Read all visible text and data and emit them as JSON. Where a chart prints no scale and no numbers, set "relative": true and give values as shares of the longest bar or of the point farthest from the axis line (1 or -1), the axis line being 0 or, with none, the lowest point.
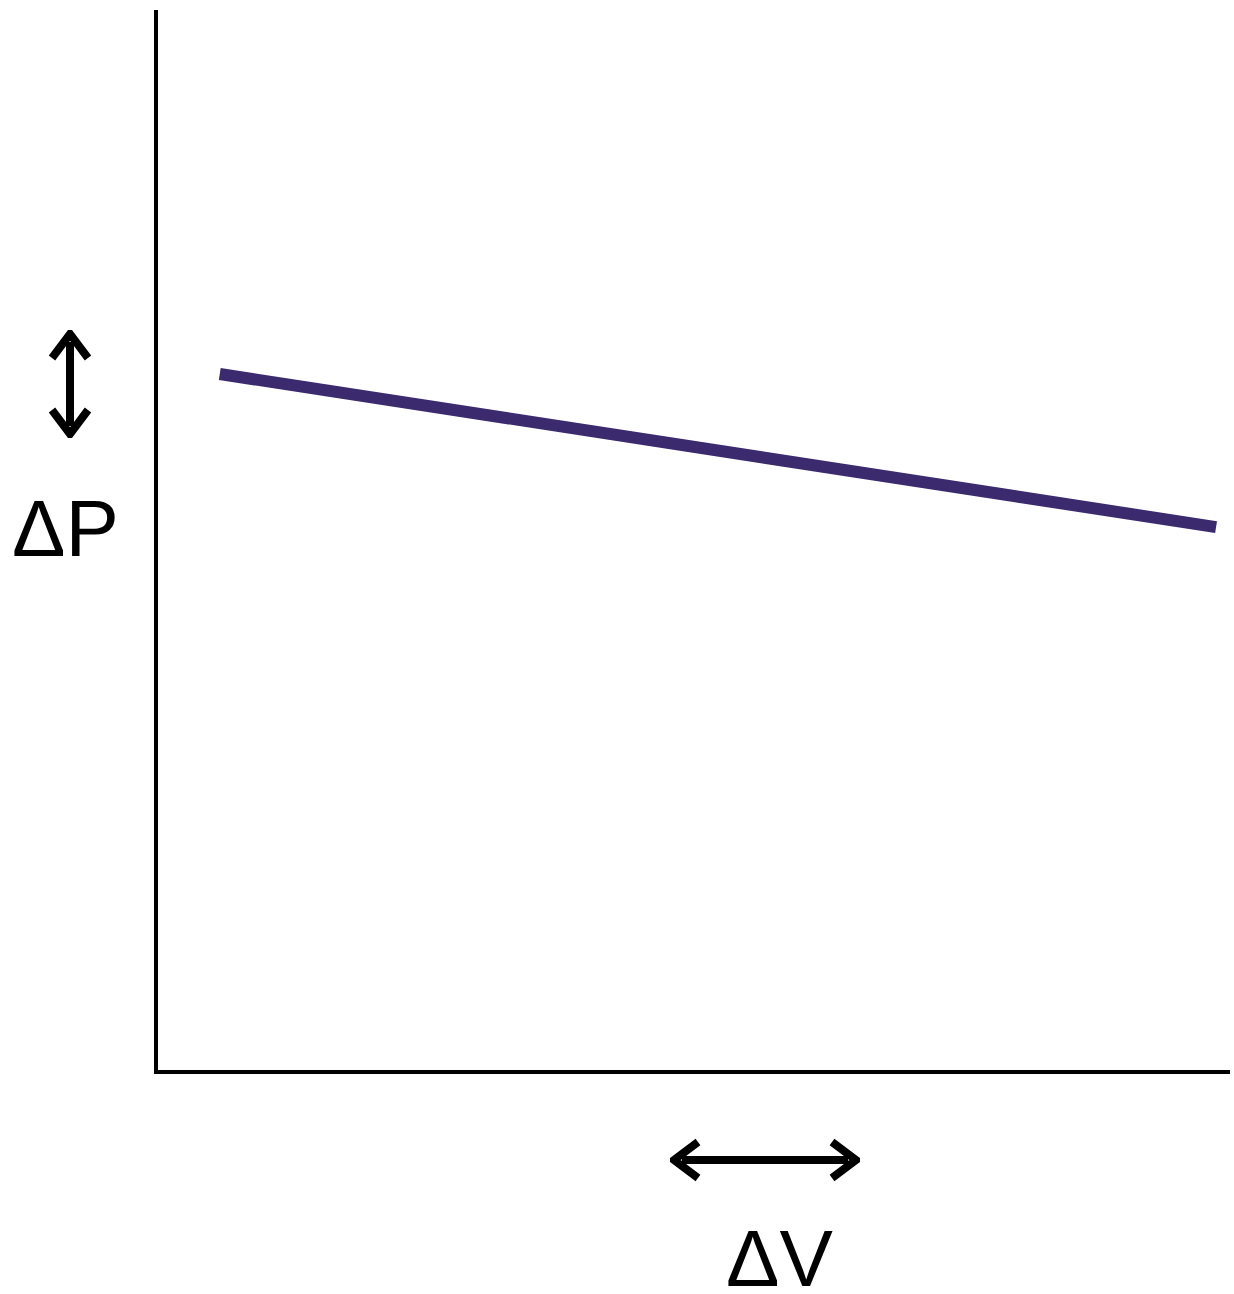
{
  "chart_data": {
    "type": "line",
    "relative": true,
    "xlabel": "ΔV",
    "ylabel": "ΔP",
    "categories": [
      null,
      null
    ],
    "series": [
      {
        "color": "#3b2a6e",
        "values": [
          1,
          0.78
        ]
      }
    ]
  }
}
